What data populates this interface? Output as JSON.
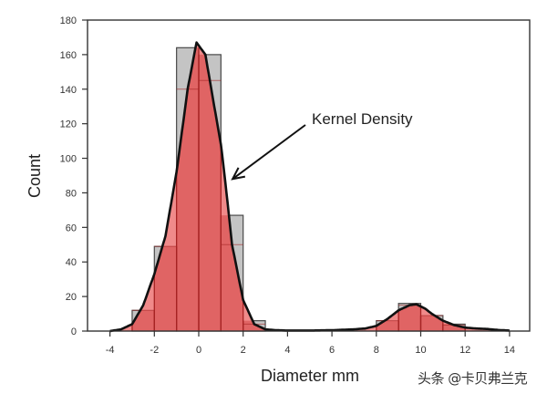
{
  "chart_data": {
    "type": "bar",
    "title": "",
    "xlabel": "Diameter mm",
    "ylabel": "Count",
    "xlim": [
      -4,
      14
    ],
    "ylim": [
      0,
      180
    ],
    "x_ticks": [
      -4,
      -2,
      0,
      2,
      4,
      6,
      8,
      10,
      12,
      14
    ],
    "y_ticks": [
      0,
      20,
      40,
      60,
      80,
      100,
      120,
      140,
      160,
      180
    ],
    "grid": false,
    "legend": null,
    "histogram": {
      "bin_width": 1,
      "bins": [
        {
          "x0": -3,
          "x1": -2,
          "count": 12
        },
        {
          "x0": -2,
          "x1": -1,
          "count": 49
        },
        {
          "x0": -1,
          "x1": 0,
          "count": 164
        },
        {
          "x0": 0,
          "x1": 1,
          "count": 160
        },
        {
          "x0": 1,
          "x1": 2,
          "count": 67
        },
        {
          "x0": 2,
          "x1": 3,
          "count": 6
        },
        {
          "x0": 8,
          "x1": 9,
          "count": 6
        },
        {
          "x0": 9,
          "x1": 10,
          "count": 16
        },
        {
          "x0": 10,
          "x1": 11,
          "count": 9
        },
        {
          "x0": 11,
          "x1": 12,
          "count": 4
        }
      ]
    },
    "series": [
      {
        "name": "Kernel Density",
        "type": "line",
        "x": [
          -4,
          -3.5,
          -3,
          -2.5,
          -2,
          -1.5,
          -1,
          -0.5,
          -0.1,
          0.3,
          0.7,
          1,
          1.2,
          1.5,
          2,
          2.5,
          3,
          3.5,
          4,
          5,
          6,
          7,
          7.5,
          8,
          8.5,
          9,
          9.5,
          9.8,
          10.2,
          10.5,
          11,
          11.5,
          12,
          12.5,
          13,
          13.5,
          14
        ],
        "values": [
          0,
          1,
          4,
          15,
          33,
          55,
          92,
          140,
          167,
          160,
          130,
          108,
          86,
          50,
          18,
          4,
          1,
          0.5,
          0.3,
          0.3,
          0.5,
          1,
          1.5,
          3,
          7,
          12,
          15,
          15.5,
          13,
          10,
          6,
          3.5,
          2,
          1.5,
          1.2,
          0.6,
          0.3
        ]
      }
    ],
    "annotations": [
      {
        "text": "Kernel Density",
        "arrow_to": {
          "x": 1.4,
          "y": 88
        }
      }
    ]
  },
  "colors": {
    "bar_fill": "#c4c4c4",
    "bar_stroke": "#4a4a4a",
    "kde_fill": "#e06464",
    "kde_fill_light": "#f08a8a",
    "kde_divider": "#a52323",
    "kde_line": "#111111",
    "axis": "#333333"
  },
  "watermark": "头条 @卡贝弗兰克"
}
